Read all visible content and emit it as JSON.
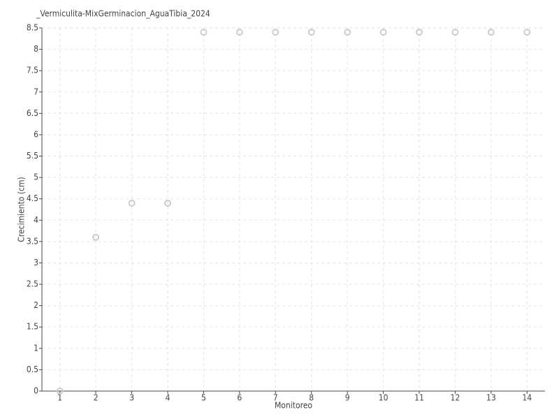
{
  "chart_data": {
    "type": "scatter",
    "title": "_Vermiculita-MixGerminacion_AguaTibia_2024",
    "x_label": "Monitoreo",
    "y_label": "Crecimiento (cm)",
    "x": [
      1,
      2,
      3,
      4,
      5,
      6,
      7,
      8,
      9,
      10,
      11,
      12,
      13,
      14
    ],
    "values": [
      0,
      3.6,
      4.4,
      4.4,
      8.4,
      8.4,
      8.4,
      8.4,
      8.4,
      8.4,
      8.4,
      8.4,
      8.4,
      8.4
    ],
    "color": "#cccccc",
    "xlim": [
      0.5,
      14.5
    ],
    "xticks": [
      1,
      2,
      3,
      4,
      5,
      6,
      7,
      8,
      9,
      10,
      11,
      12,
      13,
      14
    ],
    "ylim": [
      0,
      8.5
    ],
    "yticks": [
      0,
      0.5,
      1,
      1.5,
      2,
      2.5,
      3,
      3.5,
      4,
      4.5,
      5,
      5.5,
      6,
      6.5,
      7,
      7.5,
      8,
      8.5
    ],
    "grid": true
  }
}
